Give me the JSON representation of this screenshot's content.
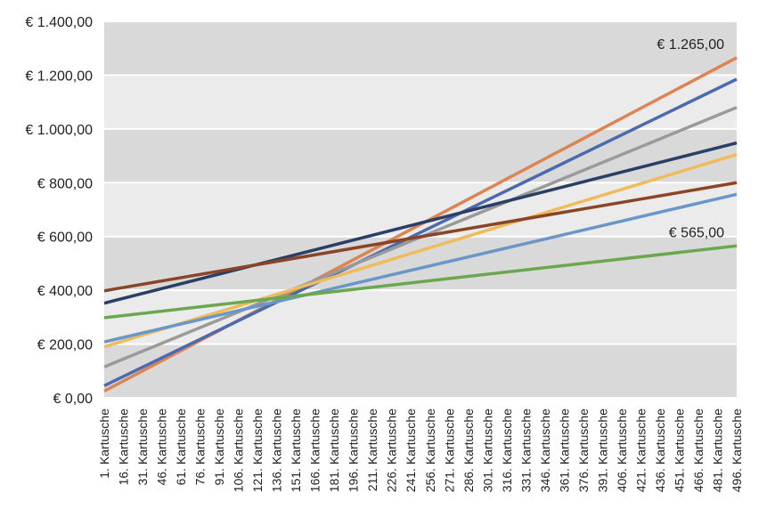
{
  "chart_data": {
    "type": "line",
    "title": "",
    "xlabel": "",
    "ylabel": "",
    "ylim": [
      0,
      1400
    ],
    "y_ticks": [
      {
        "value": 0,
        "label": "€ 0,00"
      },
      {
        "value": 200,
        "label": "€ 200,00"
      },
      {
        "value": 400,
        "label": "€ 400,00"
      },
      {
        "value": 600,
        "label": "€ 600,00"
      },
      {
        "value": 800,
        "label": "€ 800,00"
      },
      {
        "value": 1000,
        "label": "€ 1.000,00"
      },
      {
        "value": 1200,
        "label": "€ 1.200,00"
      },
      {
        "value": 1400,
        "label": "€ 1.400,00"
      }
    ],
    "x_range": [
      1,
      496
    ],
    "x_ticks": [
      {
        "value": 1,
        "label": "1. Kartusche"
      },
      {
        "value": 16,
        "label": "16. Kartusche"
      },
      {
        "value": 31,
        "label": "31. Kartusche"
      },
      {
        "value": 46,
        "label": "46. Kartusche"
      },
      {
        "value": 61,
        "label": "61. Kartusche"
      },
      {
        "value": 76,
        "label": "76. Kartusche"
      },
      {
        "value": 91,
        "label": "91. Kartusche"
      },
      {
        "value": 106,
        "label": "106. Kartusche"
      },
      {
        "value": 121,
        "label": "121. Kartusche"
      },
      {
        "value": 136,
        "label": "136. Kartusche"
      },
      {
        "value": 151,
        "label": "151. Kartusche"
      },
      {
        "value": 166,
        "label": "166. Kartusche"
      },
      {
        "value": 181,
        "label": "181. Kartusche"
      },
      {
        "value": 196,
        "label": "196. Kartusche"
      },
      {
        "value": 211,
        "label": "211. Kartusche"
      },
      {
        "value": 226,
        "label": "226. Kartusche"
      },
      {
        "value": 241,
        "label": "241. Kartusche"
      },
      {
        "value": 256,
        "label": "256. Kartusche"
      },
      {
        "value": 271,
        "label": "271. Kartusche"
      },
      {
        "value": 286,
        "label": "286. Kartusche"
      },
      {
        "value": 301,
        "label": "301. Kartusche"
      },
      {
        "value": 316,
        "label": "316. Kartusche"
      },
      {
        "value": 331,
        "label": "331. Kartusche"
      },
      {
        "value": 346,
        "label": "346. Kartusche"
      },
      {
        "value": 361,
        "label": "361. Kartusche"
      },
      {
        "value": 376,
        "label": "376. Kartusche"
      },
      {
        "value": 391,
        "label": "391. Kartusche"
      },
      {
        "value": 406,
        "label": "406. Kartusche"
      },
      {
        "value": 421,
        "label": "421. Kartusche"
      },
      {
        "value": 436,
        "label": "436. Kartusche"
      },
      {
        "value": 451,
        "label": "451. Kartusche"
      },
      {
        "value": 466,
        "label": "466. Kartusche"
      },
      {
        "value": 481,
        "label": "481. Kartusche"
      },
      {
        "value": 496,
        "label": "496. Kartusche"
      }
    ],
    "series": [
      {
        "name": "orange",
        "color": "#dd8452",
        "x": [
          1,
          496
        ],
        "values": [
          25,
          1265
        ]
      },
      {
        "name": "blue",
        "color": "#4c6baf",
        "x": [
          1,
          496
        ],
        "values": [
          45,
          1185
        ]
      },
      {
        "name": "gray",
        "color": "#9a9a9a",
        "x": [
          1,
          496
        ],
        "values": [
          115,
          1080
        ]
      },
      {
        "name": "dark-navy",
        "color": "#2b3f66",
        "x": [
          1,
          496
        ],
        "values": [
          352,
          948
        ]
      },
      {
        "name": "yellow",
        "color": "#f0bb5a",
        "x": [
          1,
          496
        ],
        "values": [
          190,
          905
        ]
      },
      {
        "name": "brown",
        "color": "#8a4426",
        "x": [
          1,
          496
        ],
        "values": [
          398,
          800
        ]
      },
      {
        "name": "light-blue",
        "color": "#6a97c8",
        "x": [
          1,
          496
        ],
        "values": [
          208,
          757
        ]
      },
      {
        "name": "green",
        "color": "#6aa84f",
        "x": [
          1,
          496
        ],
        "values": [
          298,
          565
        ]
      }
    ],
    "annotations": [
      {
        "text": "€ 1.265,00",
        "series": "orange"
      },
      {
        "text": "€ 565,00",
        "series": "green"
      }
    ],
    "grid": true,
    "legend": "none"
  },
  "colors": {
    "band_dark": "#d9d9d9",
    "band_light": "#ebebeb",
    "gridline": "#ffffff"
  }
}
